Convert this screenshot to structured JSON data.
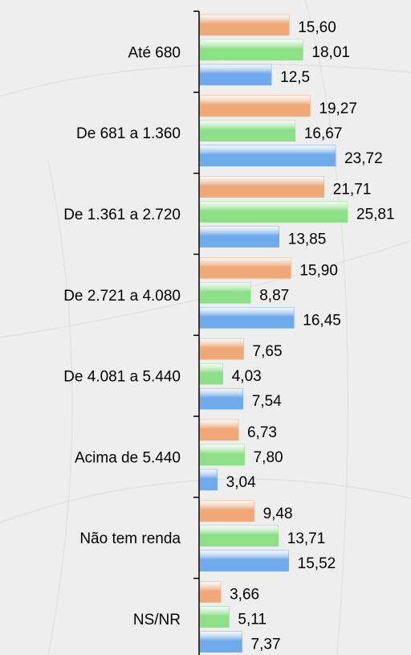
{
  "chart_data": {
    "type": "bar",
    "orientation": "horizontal",
    "categories": [
      "Até 680",
      "De 681 a 1.360",
      "De 1.361 a 2.720",
      "De 2.721 a 4.080",
      "De 4.081 a 5.440",
      "Acima de 5.440",
      "Não tem renda",
      "NS/NR"
    ],
    "series": [
      {
        "color": "#f0a878",
        "values": [
          15.6,
          19.27,
          21.71,
          15.9,
          7.65,
          6.73,
          9.48,
          3.66
        ],
        "value_labels": [
          "15,60",
          "19,27",
          "21,71",
          "15,90",
          "7,65",
          "6,73",
          "9,48",
          "3,66"
        ]
      },
      {
        "color": "#8ee088",
        "values": [
          18.01,
          16.67,
          25.81,
          8.87,
          4.03,
          7.8,
          13.71,
          5.11
        ],
        "value_labels": [
          "18,01",
          "16,67",
          "25,81",
          "8,87",
          "4,03",
          "7,80",
          "13,71",
          "5,11"
        ]
      },
      {
        "color": "#6faaec",
        "values": [
          12.5,
          23.72,
          13.85,
          16.45,
          7.54,
          3.04,
          15.52,
          7.37
        ],
        "value_labels": [
          "12,5",
          "23,72",
          "13,85",
          "16,45",
          "7,54",
          "3,04",
          "15,52",
          "7,37"
        ]
      }
    ]
  }
}
